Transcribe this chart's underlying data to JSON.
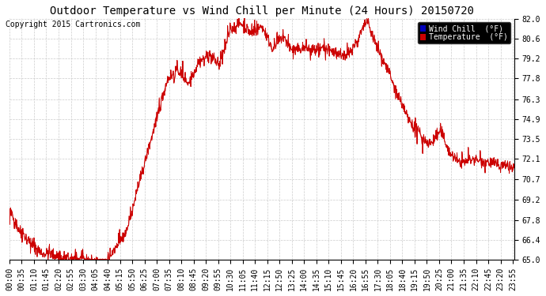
{
  "title": "Outdoor Temperature vs Wind Chill per Minute (24 Hours) 20150720",
  "copyright": "Copyright 2015 Cartronics.com",
  "ylim": [
    65.0,
    82.0
  ],
  "yticks": [
    65.0,
    66.4,
    67.8,
    69.2,
    70.7,
    72.1,
    73.5,
    74.9,
    76.3,
    77.8,
    79.2,
    80.6,
    82.0
  ],
  "legend_labels": [
    "Wind Chill  (°F)",
    "Temperature  (°F)"
  ],
  "legend_colors": [
    "#0000bb",
    "#cc0000"
  ],
  "line_color": "#cc0000",
  "background_color": "#ffffff",
  "grid_color": "#cccccc",
  "title_fontsize": 10,
  "copyright_fontsize": 7,
  "tick_fontsize": 7
}
